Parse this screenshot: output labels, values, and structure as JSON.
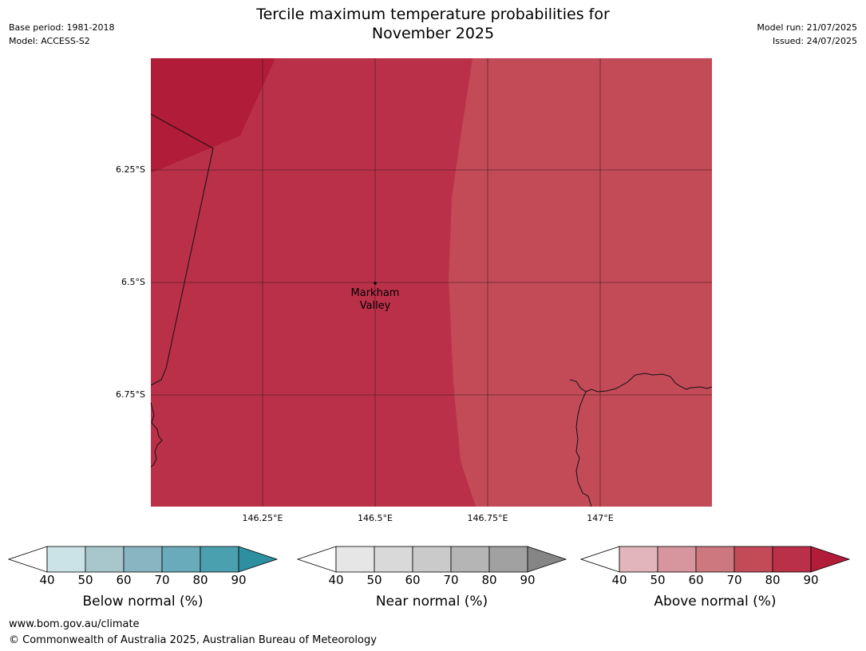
{
  "title_line1": "Tercile maximum temperature probabilities for",
  "title_line2": "November 2025",
  "meta": {
    "base_period": "Base period: 1981-2018",
    "model": "Model: ACCESS-S2",
    "model_run": "Model run: 21/07/2025",
    "issued": "Issued: 24/07/2025"
  },
  "map": {
    "lat_labels": [
      "6.25°S",
      "6.5°S",
      "6.75°S"
    ],
    "lon_labels": [
      "146.25°E",
      "146.5°E",
      "146.75°E",
      "147°E"
    ],
    "place": {
      "name_line1": "Markham",
      "name_line2": "Valley"
    },
    "colors": {
      "above_80_90": "#BA3049",
      "above_70_80": "#C24B57",
      "above_90_plus": "#B11C38"
    }
  },
  "colorbars": [
    {
      "title": "Below normal (%)",
      "ticks": [
        "40",
        "50",
        "60",
        "70",
        "80",
        "90"
      ],
      "colors": [
        "#CBE2E7",
        "#A8C7CD",
        "#88B5C1",
        "#69ABBA",
        "#4AA0AE",
        "#2E8FA0"
      ]
    },
    {
      "title": "Near normal (%)",
      "ticks": [
        "40",
        "50",
        "60",
        "70",
        "80",
        "90"
      ],
      "colors": [
        "#E6E6E6",
        "#D9D9D9",
        "#CACACA",
        "#B5B5B5",
        "#A1A1A1",
        "#858585"
      ]
    },
    {
      "title": "Above normal (%)",
      "ticks": [
        "40",
        "50",
        "60",
        "70",
        "80",
        "90"
      ],
      "colors": [
        "#E1B5BB",
        "#D7959D",
        "#CD777E",
        "#C24B57",
        "#BA3049",
        "#B11C38"
      ]
    }
  ],
  "footer": {
    "url": "www.bom.gov.au/climate",
    "copyright": "© Commonwealth of Australia 2025, Australian Bureau of Meteorology"
  }
}
